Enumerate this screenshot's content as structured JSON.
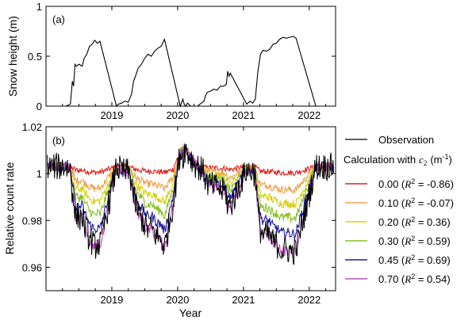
{
  "chart_data": [
    {
      "type": "line",
      "panel_label": "(a)",
      "ylabel": "Snow height (m)",
      "xlabel": "",
      "xlim": [
        2018.0,
        2022.4
      ],
      "ylim": [
        0,
        1
      ],
      "xticks": [
        2019,
        2020,
        2021,
        2022
      ],
      "xtick_labels": [
        "2019",
        "2020",
        "2021",
        "2022"
      ],
      "yticks": [
        0,
        0.5,
        1
      ],
      "ytick_labels": [
        "0",
        "0.5",
        "1"
      ],
      "series": [
        {
          "color": "#000000",
          "x": [
            2018.0,
            2018.3,
            2018.37,
            2018.4,
            2018.42,
            2018.44,
            2018.46,
            2018.5,
            2018.55,
            2018.58,
            2018.62,
            2018.66,
            2018.7,
            2018.74,
            2018.78,
            2018.82,
            2019.07,
            2019.1,
            2019.15,
            2019.2,
            2019.25,
            2019.3,
            2019.33,
            2019.36,
            2019.4,
            2019.45,
            2019.5,
            2019.55,
            2019.6,
            2019.65,
            2019.7,
            2019.75,
            2019.8,
            2020.04,
            2020.08,
            2020.1,
            2020.12,
            2020.15,
            2020.2,
            2020.3,
            2020.4,
            2020.42,
            2020.45,
            2020.5,
            2020.55,
            2020.6,
            2020.65,
            2020.7,
            2020.74,
            2020.76,
            2020.78,
            2020.8,
            2021.05,
            2021.1,
            2021.14,
            2021.18,
            2021.22,
            2021.26,
            2021.3,
            2021.35,
            2021.4,
            2021.45,
            2021.5,
            2021.55,
            2021.6,
            2021.65,
            2021.7,
            2021.76,
            2021.8,
            2022.1,
            2022.13,
            2022.3
          ],
          "y": [
            0,
            0,
            0.02,
            0.25,
            0.2,
            0.42,
            0.4,
            0.42,
            0.4,
            0.48,
            0.52,
            0.6,
            0.62,
            0.66,
            0.63,
            0.65,
            0,
            0.02,
            0.03,
            0.05,
            0.04,
            0.12,
            0.25,
            0.3,
            0.38,
            0.42,
            0.48,
            0.52,
            0.5,
            0.55,
            0.58,
            0.6,
            0.67,
            0,
            0.07,
            0.02,
            0,
            0.03,
            0,
            0,
            0.05,
            0.1,
            0.14,
            0.15,
            0.17,
            0.16,
            0.2,
            0.2,
            0.22,
            0.35,
            0.3,
            0.33,
            0.02,
            0.05,
            0.03,
            0.07,
            0.35,
            0.52,
            0.56,
            0.55,
            0.57,
            0.62,
            0.63,
            0.67,
            0.69,
            0.68,
            0.69,
            0.7,
            0.68,
            0,
            0,
            0
          ]
        }
      ]
    },
    {
      "type": "line",
      "panel_label": "(b)",
      "ylabel": "Relative count rate",
      "xlabel": "Year",
      "xlim": [
        2018.0,
        2022.4
      ],
      "ylim": [
        0.95,
        1.02
      ],
      "xticks": [
        2019,
        2020,
        2021,
        2022
      ],
      "xtick_labels": [
        "2019",
        "2020",
        "2021",
        "2022"
      ],
      "yticks": [
        0.96,
        0.98,
        1,
        1.02
      ],
      "ytick_labels": [
        "0.96",
        "0.98",
        "1",
        "1.02"
      ],
      "legend_placement": "right",
      "legend_heading": "Calculation with",
      "legend_symbol": "c",
      "legend_symbol_sub": "2",
      "legend_unit": "(m",
      "legend_unit_sup": "-1",
      "legend_unit_close": ")",
      "series": [
        {
          "name": "Observation",
          "color": "#000000",
          "depth": 1.0,
          "noise": 0.006,
          "bias": -0.004
        },
        {
          "c2": "0.00",
          "r2": "-0.86",
          "color": "#e0201a",
          "depth": 0.1,
          "noise": 0.0012,
          "bias": 0.001
        },
        {
          "c2": "0.10",
          "r2": "-0.07",
          "color": "#f0a048",
          "depth": 0.3,
          "noise": 0.0016,
          "bias": 0.0
        },
        {
          "c2": "0.20",
          "r2": "0.36",
          "color": "#d8d010",
          "depth": 0.48,
          "noise": 0.0018,
          "bias": 0.0
        },
        {
          "c2": "0.30",
          "r2": "0.59",
          "color": "#88c020",
          "depth": 0.66,
          "noise": 0.002,
          "bias": 0.0
        },
        {
          "c2": "0.45",
          "r2": "0.69",
          "color": "#1c1c9c",
          "depth": 0.86,
          "noise": 0.0022,
          "bias": 0.0
        },
        {
          "c2": "0.70",
          "r2": "0.54",
          "color": "#c050c0",
          "depth": 1.1,
          "noise": 0.0022,
          "bias": 0.0
        }
      ],
      "legend_entries": [
        {
          "label": "0.00",
          "r2": "-0.86"
        },
        {
          "label": "0.10",
          "r2": "-0.07"
        },
        {
          "label": "0.20",
          "r2": "0.36"
        },
        {
          "label": "0.30",
          "r2": "0.59"
        },
        {
          "label": "0.45",
          "r2": "0.69"
        },
        {
          "label": "0.70",
          "r2": "0.54"
        }
      ],
      "r2_symbol": "R",
      "r2_sup": "2"
    }
  ]
}
